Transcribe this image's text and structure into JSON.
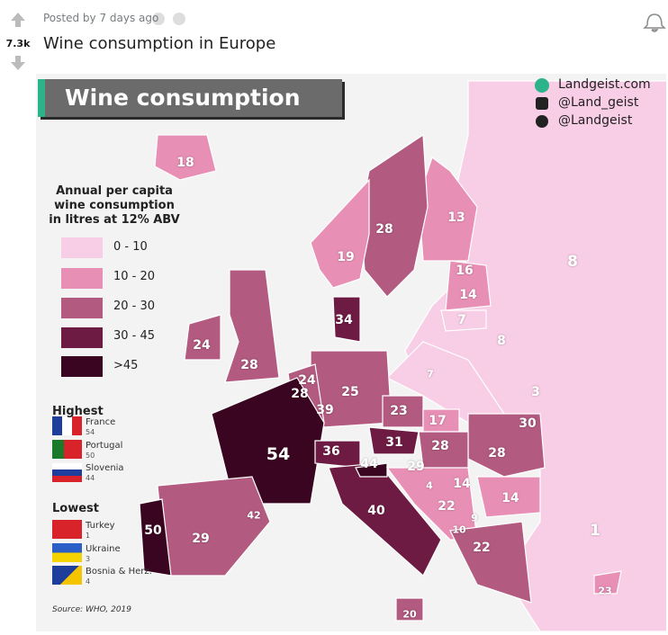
{
  "post": {
    "votes": "7.3k",
    "meta": "Posted by 7 days ago",
    "title": "Wine consumption in Europe"
  },
  "image": {
    "banner": "Wine consumption",
    "credits": [
      "Landgeist.com",
      "@Land_geist",
      "@Landgeist"
    ],
    "legend": {
      "title": "Annual per capita wine consumption in litres at 12% ABV",
      "items": [
        "0 - 10",
        "10 - 20",
        "20 - 30",
        "30 - 45",
        ">45"
      ]
    },
    "highest": {
      "heading": "Highest",
      "items": [
        {
          "country": "France",
          "value": 54
        },
        {
          "country": "Portugal",
          "value": 50
        },
        {
          "country": "Slovenia",
          "value": 44
        }
      ]
    },
    "lowest": {
      "heading": "Lowest",
      "items": [
        {
          "country": "Turkey",
          "value": 1
        },
        {
          "country": "Ukraine",
          "value": 3
        },
        {
          "country": "Bosnia & Herz.",
          "value": 4
        }
      ]
    },
    "source": "Source: WHO, 2019",
    "map_labels": [
      18,
      28,
      13,
      19,
      8,
      16,
      14,
      34,
      7,
      8,
      24,
      28,
      7,
      24,
      28,
      25,
      39,
      3,
      23,
      17,
      30,
      31,
      28,
      28,
      54,
      36,
      44,
      29,
      4,
      14,
      14,
      42,
      40,
      22,
      9,
      10,
      50,
      29,
      1,
      22,
      23,
      20
    ]
  }
}
